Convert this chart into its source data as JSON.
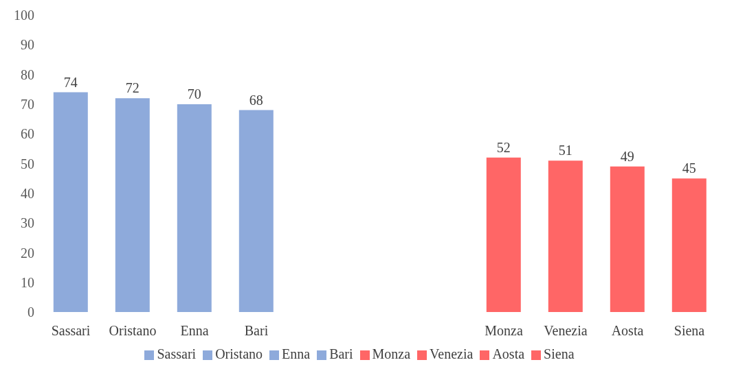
{
  "chart_data": {
    "type": "bar",
    "stacked": true,
    "data_labels": true,
    "legend": "bottom",
    "grid": false,
    "categories": [
      "Sassari",
      "Oristano",
      "Enna",
      "Bari",
      null,
      null,
      null,
      "Monza",
      "Venezia",
      "Aosta",
      "Siena"
    ],
    "ylim": [
      0,
      100
    ],
    "yticks": [
      0,
      10,
      20,
      30,
      40,
      50,
      60,
      70,
      80,
      90,
      100
    ],
    "series": [
      {
        "name": "Sassari",
        "color": "#8eaadb",
        "values": [
          74,
          null,
          null,
          null,
          null,
          null,
          null,
          null,
          null,
          null,
          null
        ]
      },
      {
        "name": "Oristano",
        "color": "#8eaadb",
        "values": [
          null,
          72,
          null,
          null,
          null,
          null,
          null,
          null,
          null,
          null,
          null
        ]
      },
      {
        "name": "Enna",
        "color": "#8eaadb",
        "values": [
          null,
          null,
          70,
          null,
          null,
          null,
          null,
          null,
          null,
          null,
          null
        ]
      },
      {
        "name": "Bari",
        "color": "#8eaadb",
        "values": [
          null,
          null,
          null,
          68,
          null,
          null,
          null,
          null,
          null,
          null,
          null
        ]
      },
      {
        "name": "Monza",
        "color": "#ff6666",
        "values": [
          null,
          null,
          null,
          null,
          null,
          null,
          null,
          52,
          null,
          null,
          null
        ]
      },
      {
        "name": "Venezia",
        "color": "#ff6666",
        "values": [
          null,
          null,
          null,
          null,
          null,
          null,
          null,
          null,
          51,
          null,
          null
        ]
      },
      {
        "name": "Aosta",
        "color": "#ff6666",
        "values": [
          null,
          null,
          null,
          null,
          null,
          null,
          null,
          null,
          null,
          49,
          null
        ]
      },
      {
        "name": "Siena",
        "color": "#ff6666",
        "values": [
          null,
          null,
          null,
          null,
          null,
          null,
          null,
          null,
          null,
          null,
          45
        ]
      }
    ]
  }
}
